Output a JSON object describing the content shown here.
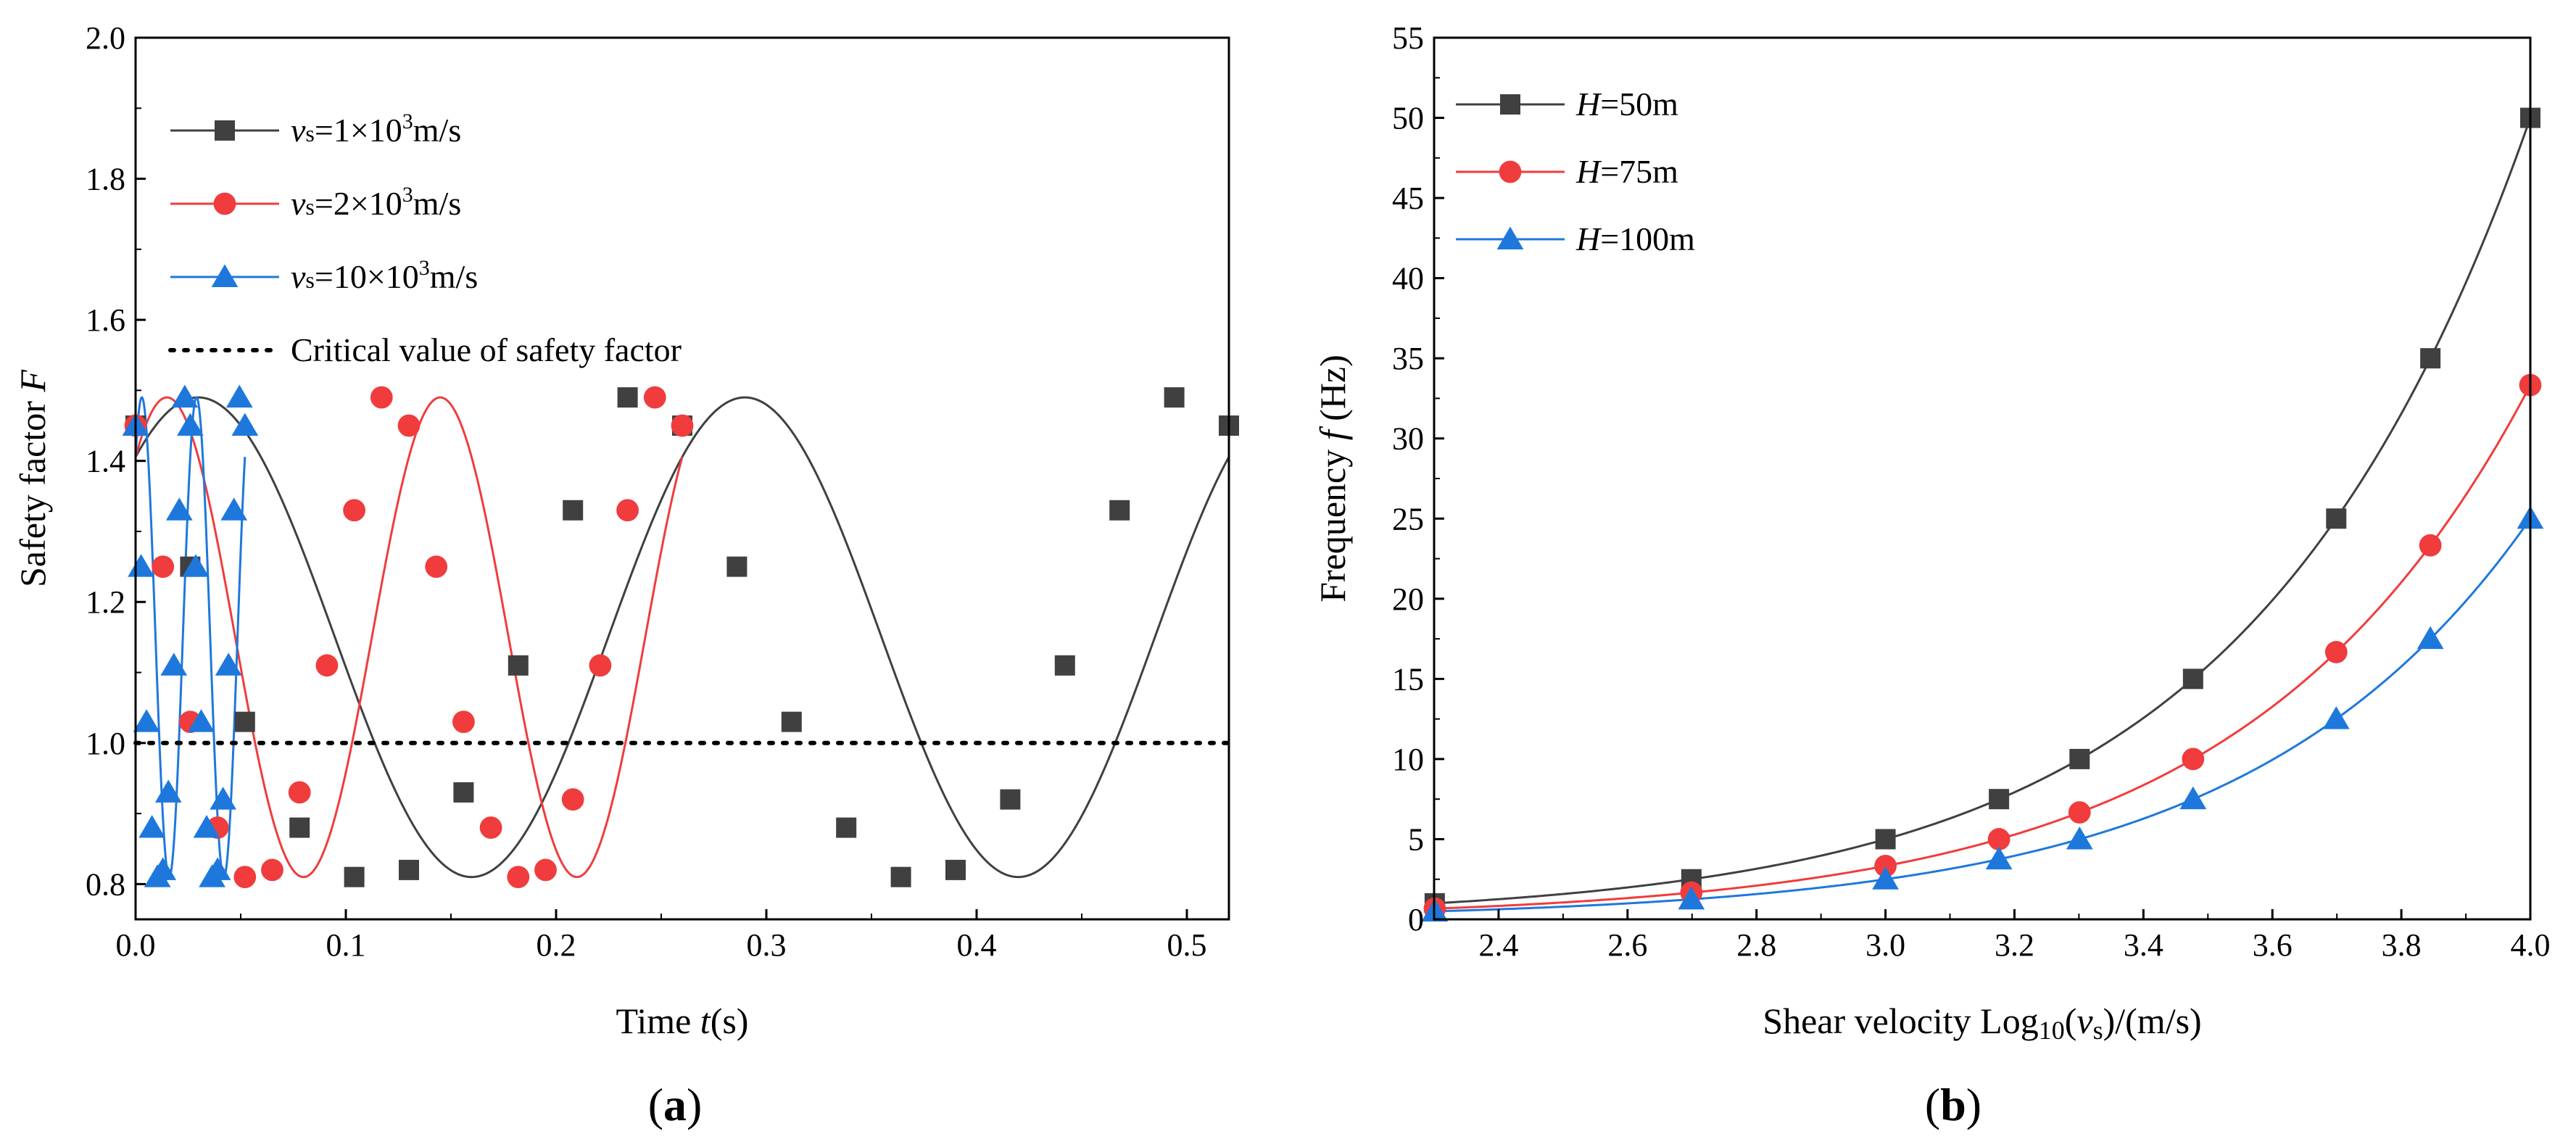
{
  "colors": {
    "black": "#404040",
    "red": "#f03c3c",
    "blue": "#1e78dc",
    "critical": "#000000"
  },
  "panels": [
    {
      "pre": "(",
      "letter": "a",
      "post": ")"
    },
    {
      "pre": "(",
      "letter": "b",
      "post": ")"
    }
  ],
  "chart_data": [
    {
      "type": "line",
      "xlabel": {
        "prefix": "Time ",
        "var": "t",
        "suffix": "(s)"
      },
      "ylabel": {
        "prefix": "Safety factor ",
        "var": "F"
      },
      "xlim": [
        0.0,
        0.52
      ],
      "ylim": [
        0.75,
        2.0
      ],
      "xticks": [
        "0.0",
        "0.1",
        "0.2",
        "0.3",
        "0.4",
        "0.5"
      ],
      "xtick_values": [
        0.0,
        0.1,
        0.2,
        0.3,
        0.4,
        0.5
      ],
      "yticks": [
        "0.8",
        "1.0",
        "1.2",
        "1.4",
        "1.6",
        "1.8",
        "2.0"
      ],
      "ytick_values": [
        0.8,
        1.0,
        1.2,
        1.4,
        1.6,
        1.8,
        2.0
      ],
      "grid": false,
      "legend_position": "top-left",
      "critical_line": {
        "y": 1.0,
        "label": "Critical value of safety factor"
      },
      "series": [
        {
          "name": {
            "var": "v",
            "sub": "s",
            "text": "=1×10",
            "sup": "3",
            "unit": "m/s"
          },
          "marker": "square",
          "color": "#404040",
          "period": 0.26,
          "phase": 0.0,
          "markers_x": [
            0.0,
            0.026,
            0.052,
            0.078,
            0.104,
            0.13,
            0.156,
            0.182,
            0.208,
            0.234,
            0.26,
            0.286,
            0.312,
            0.338,
            0.364,
            0.39,
            0.416,
            0.442,
            0.468,
            0.494,
            0.52
          ],
          "markers_y": [
            1.45,
            1.25,
            1.03,
            0.88,
            0.81,
            0.82,
            0.93,
            1.11,
            1.33,
            1.49,
            1.45,
            1.25,
            1.03,
            0.88,
            0.81,
            0.82,
            0.92,
            1.11,
            1.33,
            1.49,
            1.45
          ]
        },
        {
          "name": {
            "var": "v",
            "sub": "s",
            "text": "=2×10",
            "sup": "3",
            "unit": "m/s"
          },
          "marker": "circle",
          "color": "#f03c3c",
          "period": 0.13,
          "phase": 0.0,
          "markers_x": [
            0.0,
            0.013,
            0.026,
            0.039,
            0.052,
            0.065,
            0.078,
            0.091,
            0.104,
            0.117,
            0.13,
            0.143,
            0.156,
            0.169,
            0.182,
            0.195,
            0.208,
            0.221,
            0.234,
            0.247,
            0.26
          ],
          "markers_y": [
            1.45,
            1.25,
            1.03,
            0.88,
            0.81,
            0.82,
            0.93,
            1.11,
            1.33,
            1.49,
            1.45,
            1.25,
            1.03,
            0.88,
            0.81,
            0.82,
            0.92,
            1.11,
            1.33,
            1.49,
            1.45
          ]
        },
        {
          "name": {
            "var": "v",
            "sub": "s",
            "text": "=10×10",
            "sup": "3",
            "unit": "m/s"
          },
          "marker": "triangle",
          "color": "#1e78dc",
          "period": 0.026,
          "phase": 0.0,
          "markers_x": [
            0.0,
            0.0026,
            0.0052,
            0.0078,
            0.0104,
            0.013,
            0.0156,
            0.0182,
            0.0208,
            0.0234,
            0.026,
            0.0286,
            0.0312,
            0.0338,
            0.0364,
            0.039,
            0.0416,
            0.0442,
            0.0468,
            0.0494,
            0.052
          ],
          "markers_y": [
            1.45,
            1.25,
            1.03,
            0.88,
            0.81,
            0.82,
            0.93,
            1.11,
            1.33,
            1.49,
            1.45,
            1.25,
            1.03,
            0.88,
            0.81,
            0.82,
            0.92,
            1.11,
            1.33,
            1.49,
            1.45
          ]
        }
      ]
    },
    {
      "type": "line",
      "xlabel": {
        "prefix": "Shear velocity Log",
        "sub1": "10",
        "open": "(",
        "var": "v",
        "sub2": "s",
        "suffix": ")/(m/s)"
      },
      "ylabel": {
        "prefix": "Frequency ",
        "var": "f",
        "suffix": " (Hz)"
      },
      "xlim": [
        2.3,
        4.0
      ],
      "ylim": [
        0,
        55
      ],
      "xticks": [
        "2.4",
        "2.6",
        "2.8",
        "3.0",
        "3.2",
        "3.4",
        "3.6",
        "3.8",
        "4.0"
      ],
      "xtick_values": [
        2.4,
        2.6,
        2.8,
        3.0,
        3.2,
        3.4,
        3.6,
        3.8,
        4.0
      ],
      "yticks": [
        "0",
        "5",
        "10",
        "15",
        "20",
        "25",
        "30",
        "35",
        "40",
        "45",
        "50",
        "55"
      ],
      "ytick_values": [
        0,
        5,
        10,
        15,
        20,
        25,
        30,
        35,
        40,
        45,
        50,
        55
      ],
      "grid": false,
      "legend_position": "top-left",
      "series": [
        {
          "name": {
            "var": "H",
            "text": "=50m"
          },
          "marker": "square",
          "color": "#404040",
          "curve_coef": 0.005,
          "x": [
            2.301,
            2.699,
            3.0,
            3.176,
            3.301,
            3.477,
            3.699,
            3.845,
            4.0
          ],
          "y": [
            1.0,
            2.5,
            5.0,
            7.5,
            10.0,
            15.0,
            25.0,
            35.0,
            50.0
          ]
        },
        {
          "name": {
            "var": "H",
            "text": "=75m"
          },
          "marker": "circle",
          "color": "#f03c3c",
          "curve_coef": 0.003333,
          "x": [
            2.301,
            2.699,
            3.0,
            3.176,
            3.301,
            3.477,
            3.699,
            3.845,
            4.0
          ],
          "y": [
            0.67,
            1.67,
            3.33,
            5.0,
            6.67,
            10.0,
            16.67,
            23.33,
            33.33
          ]
        },
        {
          "name": {
            "var": "H",
            "text": "=100m"
          },
          "marker": "triangle",
          "color": "#1e78dc",
          "curve_coef": 0.0025,
          "x": [
            2.301,
            2.699,
            3.0,
            3.176,
            3.301,
            3.477,
            3.699,
            3.845,
            4.0
          ],
          "y": [
            0.5,
            1.25,
            2.5,
            3.75,
            5.0,
            7.5,
            12.5,
            17.5,
            25.0
          ]
        }
      ]
    }
  ]
}
